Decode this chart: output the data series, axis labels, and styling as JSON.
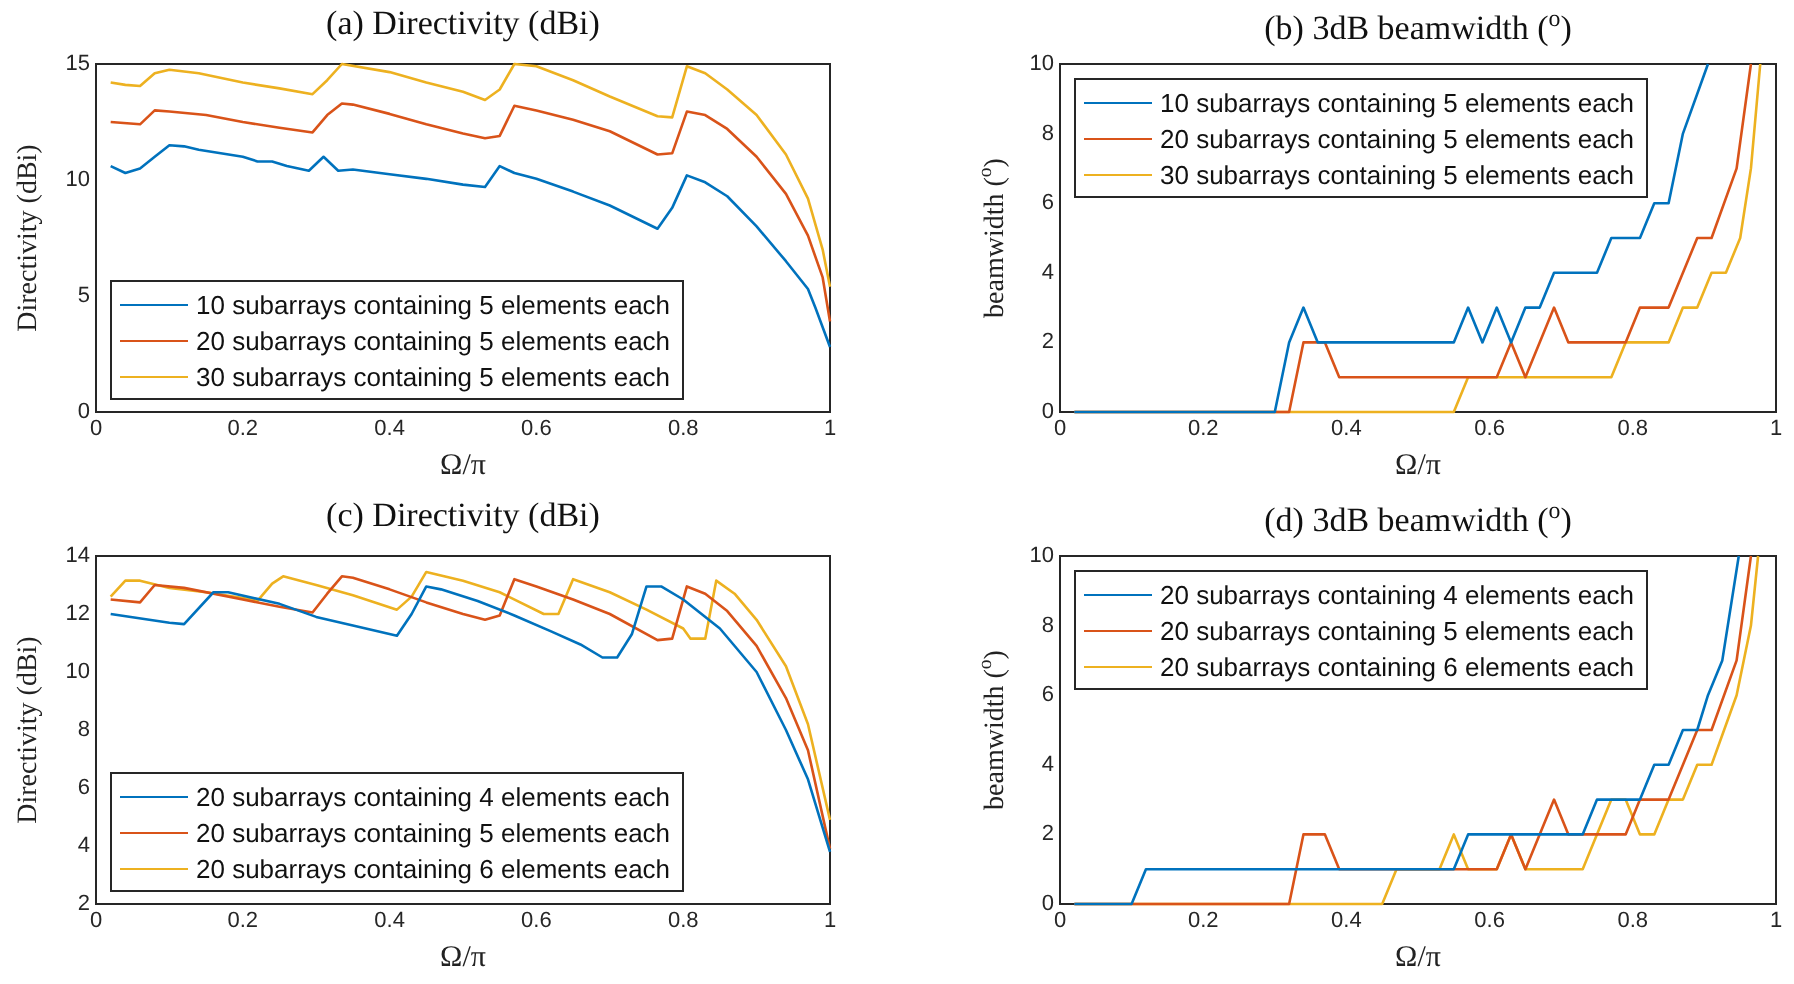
{
  "chart_data": [
    {
      "type": "line",
      "title": "(a) Directivity (dBi)",
      "xlabel": "Ω/π",
      "ylabel": "Directivity (dBi)",
      "xlim": [
        0,
        1
      ],
      "xticks": [
        0,
        0.2,
        0.4,
        0.6,
        0.8,
        1
      ],
      "ylim": [
        0,
        15
      ],
      "yticks": [
        0,
        5,
        10,
        15
      ],
      "grid": false,
      "legend": "bottom left",
      "series": [
        {
          "name": "10 subarrays containing 5 elements each",
          "color": "#0072bd",
          "x": [
            0.02,
            0.04,
            0.06,
            0.08,
            0.1,
            0.12,
            0.14,
            0.2,
            0.22,
            0.24,
            0.26,
            0.29,
            0.31,
            0.33,
            0.35,
            0.4,
            0.45,
            0.5,
            0.53,
            0.55,
            0.57,
            0.6,
            0.65,
            0.7,
            0.765,
            0.785,
            0.805,
            0.83,
            0.86,
            0.9,
            0.94,
            0.97,
            0.98,
            1.0
          ],
          "values": [
            10.6,
            10.3,
            10.5,
            11.0,
            11.5,
            11.45,
            11.3,
            11.0,
            10.8,
            10.8,
            10.6,
            10.4,
            11.0,
            10.4,
            10.45,
            10.25,
            10.05,
            9.8,
            9.7,
            10.6,
            10.3,
            10.05,
            9.5,
            8.9,
            7.9,
            8.8,
            10.2,
            9.9,
            9.3,
            8.0,
            6.5,
            5.3,
            4.5,
            2.8
          ]
        },
        {
          "name": "20 subarrays containing 5 elements each",
          "color": "#d95319",
          "x": [
            0.02,
            0.06,
            0.08,
            0.1,
            0.15,
            0.2,
            0.25,
            0.295,
            0.315,
            0.335,
            0.35,
            0.4,
            0.45,
            0.5,
            0.53,
            0.55,
            0.57,
            0.6,
            0.65,
            0.7,
            0.765,
            0.785,
            0.805,
            0.83,
            0.86,
            0.9,
            0.94,
            0.97,
            0.99,
            1.0
          ],
          "values": [
            12.5,
            12.4,
            13.0,
            12.95,
            12.8,
            12.5,
            12.25,
            12.05,
            12.8,
            13.3,
            13.25,
            12.85,
            12.4,
            12.0,
            11.8,
            11.9,
            13.2,
            13.0,
            12.6,
            12.1,
            11.1,
            11.15,
            12.95,
            12.8,
            12.2,
            11.0,
            9.4,
            7.6,
            5.8,
            3.9
          ]
        },
        {
          "name": "30 subarrays containing 5 elements each",
          "color": "#edb120",
          "x": [
            0.02,
            0.04,
            0.06,
            0.08,
            0.1,
            0.14,
            0.2,
            0.25,
            0.295,
            0.315,
            0.335,
            0.4,
            0.45,
            0.5,
            0.53,
            0.55,
            0.57,
            0.6,
            0.65,
            0.7,
            0.765,
            0.785,
            0.805,
            0.83,
            0.86,
            0.9,
            0.94,
            0.97,
            0.99,
            1.0
          ],
          "values": [
            14.2,
            14.1,
            14.05,
            14.6,
            14.75,
            14.6,
            14.2,
            13.95,
            13.7,
            14.3,
            15.0,
            14.65,
            14.2,
            13.8,
            13.45,
            13.9,
            15.0,
            14.9,
            14.3,
            13.6,
            12.75,
            12.7,
            14.9,
            14.6,
            13.9,
            12.8,
            11.1,
            9.2,
            7.0,
            5.4
          ]
        }
      ]
    },
    {
      "type": "line",
      "title": "(b) 3dB beamwidth ($^{o}$)",
      "xlabel": "Ω/π",
      "ylabel": "beamwidth ($^{o}$)",
      "xlim": [
        0,
        1
      ],
      "xticks": [
        0,
        0.2,
        0.4,
        0.6,
        0.8,
        1
      ],
      "ylim": [
        0,
        10
      ],
      "yticks": [
        0,
        2,
        4,
        6,
        8,
        10
      ],
      "grid": false,
      "legend": "top left",
      "series": [
        {
          "name": "10 subarrays containing 5 elements each",
          "color": "#0072bd",
          "x": [
            0.02,
            0.3,
            0.32,
            0.34,
            0.36,
            0.55,
            0.57,
            0.59,
            0.61,
            0.63,
            0.65,
            0.67,
            0.69,
            0.75,
            0.77,
            0.81,
            0.83,
            0.85,
            0.87,
            0.905
          ],
          "values": [
            0,
            0,
            2,
            3,
            2,
            2,
            3,
            2,
            3,
            2,
            3,
            3,
            4,
            4,
            5,
            5,
            6,
            6,
            8,
            10
          ]
        },
        {
          "name": "20 subarrays containing 5 elements each",
          "color": "#d95319",
          "x": [
            0.02,
            0.32,
            0.34,
            0.37,
            0.39,
            0.61,
            0.63,
            0.65,
            0.69,
            0.71,
            0.79,
            0.81,
            0.85,
            0.89,
            0.91,
            0.945,
            0.965
          ],
          "values": [
            0,
            0,
            2,
            2,
            1,
            1,
            2,
            1,
            3,
            2,
            2,
            3,
            3,
            5,
            5,
            7,
            10
          ]
        },
        {
          "name": "30 subarrays containing 5 elements each",
          "color": "#edb120",
          "x": [
            0.02,
            0.55,
            0.57,
            0.77,
            0.79,
            0.85,
            0.87,
            0.89,
            0.91,
            0.93,
            0.95,
            0.965,
            0.978
          ],
          "values": [
            0,
            0,
            1,
            1,
            2,
            2,
            3,
            3,
            4,
            4,
            5,
            7,
            10
          ]
        }
      ]
    },
    {
      "type": "line",
      "title": "(c) Directivity (dBi)",
      "xlabel": "Ω/π",
      "ylabel": "Directivity (dBi)",
      "xlim": [
        0,
        1
      ],
      "xticks": [
        0,
        0.2,
        0.4,
        0.6,
        0.8,
        1
      ],
      "ylim": [
        2,
        14
      ],
      "yticks": [
        2,
        4,
        6,
        8,
        10,
        12,
        14
      ],
      "grid": false,
      "legend": "bottom left",
      "series": [
        {
          "name": "20 subarrays containing 4 elements each",
          "color": "#0072bd",
          "x": [
            0.02,
            0.1,
            0.12,
            0.16,
            0.18,
            0.25,
            0.3,
            0.35,
            0.41,
            0.43,
            0.45,
            0.47,
            0.52,
            0.57,
            0.62,
            0.66,
            0.69,
            0.71,
            0.73,
            0.75,
            0.77,
            0.8,
            0.85,
            0.9,
            0.94,
            0.97,
            1.0
          ],
          "values": [
            12.0,
            11.7,
            11.65,
            12.75,
            12.75,
            12.35,
            11.9,
            11.6,
            11.25,
            12.0,
            12.95,
            12.85,
            12.45,
            11.95,
            11.4,
            10.95,
            10.5,
            10.5,
            11.3,
            12.95,
            12.95,
            12.5,
            11.5,
            10.0,
            8.0,
            6.3,
            3.8
          ]
        },
        {
          "name": "20 subarrays containing 5 elements each",
          "color": "#d95319",
          "x": [
            0.02,
            0.06,
            0.08,
            0.12,
            0.2,
            0.25,
            0.295,
            0.315,
            0.335,
            0.35,
            0.4,
            0.45,
            0.5,
            0.53,
            0.55,
            0.57,
            0.6,
            0.65,
            0.7,
            0.765,
            0.785,
            0.805,
            0.83,
            0.86,
            0.9,
            0.94,
            0.97,
            1.0
          ],
          "values": [
            12.5,
            12.4,
            13.0,
            12.9,
            12.5,
            12.25,
            12.05,
            12.7,
            13.3,
            13.25,
            12.85,
            12.4,
            12.0,
            11.8,
            11.95,
            13.2,
            12.95,
            12.5,
            12.0,
            11.1,
            11.15,
            12.95,
            12.7,
            12.1,
            10.9,
            9.1,
            7.3,
            3.9
          ]
        },
        {
          "name": "20 subarrays containing 6 elements each",
          "color": "#edb120",
          "x": [
            0.02,
            0.04,
            0.06,
            0.1,
            0.15,
            0.2,
            0.22,
            0.24,
            0.255,
            0.3,
            0.35,
            0.41,
            0.43,
            0.45,
            0.5,
            0.55,
            0.61,
            0.63,
            0.65,
            0.7,
            0.75,
            0.8,
            0.81,
            0.83,
            0.845,
            0.87,
            0.9,
            0.94,
            0.97,
            1.0
          ],
          "values": [
            12.6,
            13.15,
            13.15,
            12.9,
            12.75,
            12.55,
            12.45,
            13.05,
            13.3,
            13.0,
            12.65,
            12.15,
            12.6,
            13.45,
            13.15,
            12.75,
            12.0,
            12.0,
            13.2,
            12.75,
            12.15,
            11.5,
            11.15,
            11.15,
            13.15,
            12.7,
            11.8,
            10.2,
            8.2,
            4.9
          ]
        }
      ]
    },
    {
      "type": "line",
      "title": "(d) 3dB beamwidth ($^{o}$)",
      "xlabel": "Ω/π",
      "ylabel": "beamwidth ($^{o}$)",
      "xlim": [
        0,
        1
      ],
      "xticks": [
        0,
        0.2,
        0.4,
        0.6,
        0.8,
        1
      ],
      "ylim": [
        0,
        10
      ],
      "yticks": [
        0,
        2,
        4,
        6,
        8,
        10
      ],
      "grid": false,
      "legend": "top left",
      "series": [
        {
          "name": "20 subarrays containing 4 elements each",
          "color": "#0072bd",
          "x": [
            0.02,
            0.1,
            0.12,
            0.55,
            0.57,
            0.73,
            0.75,
            0.81,
            0.83,
            0.85,
            0.87,
            0.89,
            0.905,
            0.925,
            0.948
          ],
          "values": [
            0,
            0,
            1,
            1,
            2,
            2,
            3,
            3,
            4,
            4,
            5,
            5,
            6,
            7,
            10
          ]
        },
        {
          "name": "20 subarrays containing 5 elements each",
          "color": "#d95319",
          "x": [
            0.02,
            0.32,
            0.34,
            0.37,
            0.39,
            0.61,
            0.63,
            0.65,
            0.69,
            0.71,
            0.79,
            0.81,
            0.85,
            0.89,
            0.91,
            0.945,
            0.965
          ],
          "values": [
            0,
            0,
            2,
            2,
            1,
            1,
            2,
            1,
            3,
            2,
            2,
            3,
            3,
            5,
            5,
            7,
            10
          ]
        },
        {
          "name": "20 subarrays containing 6 elements each",
          "color": "#edb120",
          "x": [
            0.02,
            0.45,
            0.47,
            0.53,
            0.55,
            0.57,
            0.61,
            0.63,
            0.65,
            0.73,
            0.77,
            0.79,
            0.81,
            0.83,
            0.85,
            0.87,
            0.89,
            0.91,
            0.945,
            0.965,
            0.975
          ],
          "values": [
            0,
            0,
            1,
            1,
            2,
            1,
            1,
            2,
            1,
            1,
            3,
            3,
            2,
            2,
            3,
            3,
            4,
            4,
            6,
            8,
            10
          ]
        }
      ]
    }
  ]
}
